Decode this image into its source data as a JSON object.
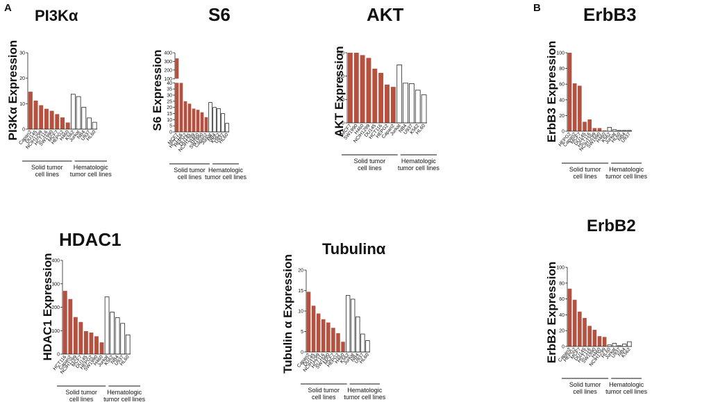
{
  "panel_labels": [
    "A",
    "B"
  ],
  "colors": {
    "solid": "#b5513e",
    "hematologic": "#ffffff",
    "stroke": "#222222"
  },
  "chart_data": [
    {
      "type": "bar",
      "title": "PI3Kα",
      "ylabel": "PI3Kα Expression",
      "xlabel": "",
      "ylim": [
        0,
        30
      ],
      "yticks": [
        0,
        10,
        20,
        30
      ],
      "categories": [
        "Capan2",
        "DU145",
        "NCIH1299",
        "HCT116",
        "SW1990",
        "MCF7",
        "HEPG2",
        "H460",
        "K562",
        "Jurkat",
        "NB4",
        "U937",
        "HL60"
      ],
      "values": [
        14.7,
        11.2,
        9.4,
        8.0,
        7.2,
        5.9,
        4.6,
        2.6,
        13.7,
        12.8,
        8.6,
        4.4,
        2.7
      ],
      "groups": [
        {
          "name": "Solid tumor cell lines",
          "lines": [
            "Solid tumor",
            "cell lines"
          ],
          "count": 8
        },
        {
          "name": "Hematologic tumor cell lines",
          "lines": [
            "Hematologic",
            "tumor cell lines"
          ],
          "count": 5
        }
      ]
    },
    {
      "type": "bar",
      "title": "S6",
      "ylabel": "S6 Expression",
      "xlabel": "",
      "ylim": [
        0,
        400
      ],
      "broken_axis": {
        "break_from": 40,
        "break_to": 100
      },
      "yticks": [
        0,
        5,
        10,
        15,
        20,
        25,
        30,
        35,
        40,
        100,
        200,
        300,
        400
      ],
      "categories": [
        "MCF7",
        "HCT116",
        "HEPG2",
        "DU145",
        "NCIH1299",
        "H460",
        "SW1990",
        "Capan2",
        "Jurkat",
        "NB4",
        "K562",
        "U937",
        "HL60"
      ],
      "values": [
        335,
        45,
        25,
        23,
        19,
        18,
        16,
        12,
        24,
        20,
        19,
        15,
        7
      ],
      "groups": [
        {
          "name": "Solid tumor cell lines",
          "lines": [
            "Solid tumor",
            "cell lines"
          ],
          "count": 8
        },
        {
          "name": "Hematologic tumor cell lines",
          "lines": [
            "Hematologic",
            "tumor cell lines"
          ],
          "count": 5
        }
      ]
    },
    {
      "type": "bar",
      "title": "AKT",
      "ylabel": "AKT Expression",
      "xlabel": "",
      "ylim": [
        0,
        150
      ],
      "yticks": [
        0,
        50,
        100,
        150
      ],
      "categories": [
        "MCF7",
        "SW1990",
        "H460",
        "NCIH1299",
        "DU145",
        "HCT116",
        "HEPG2",
        "Capan2",
        "Jurkat",
        "NB4",
        "U937",
        "K562",
        "HL60"
      ],
      "values": [
        150,
        150,
        145,
        139,
        116,
        107,
        82,
        77,
        124,
        85,
        84,
        70,
        60
      ],
      "groups": [
        {
          "name": "Solid tumor cell lines",
          "lines": [
            "Solid tumor",
            "cell lines"
          ],
          "count": 8
        },
        {
          "name": "Hematologic tumor cell lines",
          "lines": [
            "Hematologic",
            "tumor cell lines"
          ],
          "count": 5
        }
      ]
    },
    {
      "type": "bar",
      "title": "ErbB3",
      "ylabel": "ErbB3 Expression",
      "xlabel": "",
      "ylim": [
        0,
        100
      ],
      "yticks": [
        0,
        20,
        40,
        60,
        80,
        100
      ],
      "categories": [
        "HEPG2",
        "Capan2",
        "MCF7",
        "DU145",
        "HCT116",
        "NCIH1299",
        "SW1990",
        "H460",
        "K562",
        "Jurkat",
        "HL60",
        "NB4",
        "U937"
      ],
      "values": [
        100,
        61,
        58,
        12,
        15,
        4,
        4,
        1,
        5,
        2,
        1,
        1,
        1
      ],
      "groups": [
        {
          "name": "Solid tumor cell lines",
          "lines": [
            "Solid tumor",
            "cell lines"
          ],
          "count": 8
        },
        {
          "name": "Hematologic tumor cell lines",
          "lines": [
            "Hematologic",
            "tumor cell lines"
          ],
          "count": 5
        }
      ]
    },
    {
      "type": "bar",
      "title": "HDAC1",
      "ylabel": "HDAC1 Expression",
      "xlabel": "",
      "ylim": [
        0,
        400
      ],
      "yticks": [
        0,
        100,
        200,
        300,
        400
      ],
      "categories": [
        "HCT116",
        "Capan2",
        "NCIH1299",
        "MCF7",
        "DU145",
        "HEPG2",
        "SW1990",
        "H460",
        "Jurkat",
        "K562",
        "NB4",
        "U937",
        "HL60"
      ],
      "values": [
        270,
        235,
        158,
        137,
        98,
        92,
        76,
        50,
        244,
        179,
        156,
        131,
        82
      ],
      "groups": [
        {
          "name": "Solid tumor cell lines",
          "lines": [
            "Solid tumor",
            "cell lines"
          ],
          "count": 8
        },
        {
          "name": "Hematologic tumor cell lines",
          "lines": [
            "Hematologic",
            "tumor cell lines"
          ],
          "count": 5
        }
      ]
    },
    {
      "type": "bar",
      "title": "Tubulinα",
      "ylabel": "Tubulin α Expression",
      "xlabel": "",
      "ylim": [
        0,
        20
      ],
      "yticks": [
        0,
        5,
        10,
        15,
        20
      ],
      "categories": [
        "Capan2",
        "DU145",
        "NCIH1299",
        "HCT116",
        "SW1990",
        "MCF7",
        "HEPG2",
        "H460",
        "K562",
        "Jurkat",
        "NB4",
        "U937",
        "HL60"
      ],
      "values": [
        14.7,
        11.3,
        9.4,
        8.0,
        7.2,
        5.9,
        4.6,
        2.5,
        13.8,
        12.9,
        8.6,
        4.4,
        2.8
      ],
      "groups": [
        {
          "name": "Solid tumor cell lines",
          "lines": [
            "Solid tumor",
            "cell lines"
          ],
          "count": 8
        },
        {
          "name": "Hematologic tumor cell lines",
          "lines": [
            "Hematologic",
            "tumor cell lines"
          ],
          "count": 5
        }
      ]
    },
    {
      "type": "bar",
      "title": "ErbB2",
      "ylabel": "ErbB2 Expression",
      "xlabel": "",
      "ylim": [
        0,
        100
      ],
      "yticks": [
        0,
        20,
        40,
        60,
        80,
        100
      ],
      "categories": [
        "Capan2",
        "HEPG2",
        "MCF7",
        "DU145",
        "HCT116",
        "SW1990",
        "H460",
        "NCIH1299",
        "HL60",
        "Jurkat",
        "U937",
        "NB4",
        "K562"
      ],
      "values": [
        73,
        59,
        44,
        36,
        26,
        21,
        13,
        12,
        2,
        4,
        1,
        3,
        6
      ],
      "groups": [
        {
          "name": "Solid tumor cell lines",
          "lines": [
            "Solid tumor",
            "cell lines"
          ],
          "count": 8
        },
        {
          "name": "Hematologic tumor cell lines",
          "lines": [
            "Hematologic",
            "tumor cell lines"
          ],
          "count": 5
        }
      ]
    }
  ]
}
